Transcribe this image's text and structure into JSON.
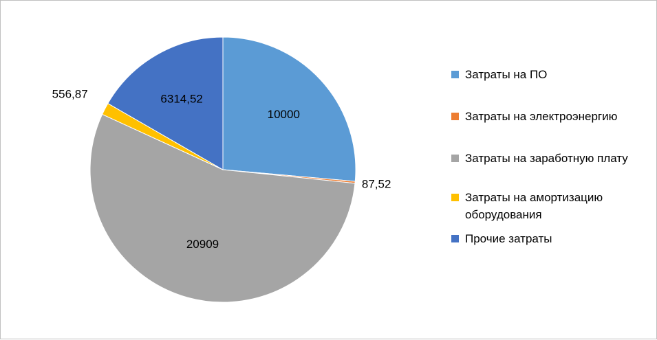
{
  "chart_data": {
    "type": "pie",
    "title": "",
    "categories": [
      "Затраты на ПО",
      "Затраты на электроэнергию",
      "Затраты на заработную плату",
      "Затраты на амортизацию оборудования",
      "Прочие затраты"
    ],
    "values": [
      10000,
      87.52,
      20909,
      556.87,
      6314.52
    ],
    "data_labels": [
      "10000",
      "87,52",
      "20909",
      "556,87",
      "6314,52"
    ],
    "colors": [
      "#5b9bd5",
      "#ed7d31",
      "#a5a5a5",
      "#ffc000",
      "#4472c4"
    ],
    "start_angle_deg": 0,
    "direction": "clockwise",
    "legend_position": "right"
  }
}
